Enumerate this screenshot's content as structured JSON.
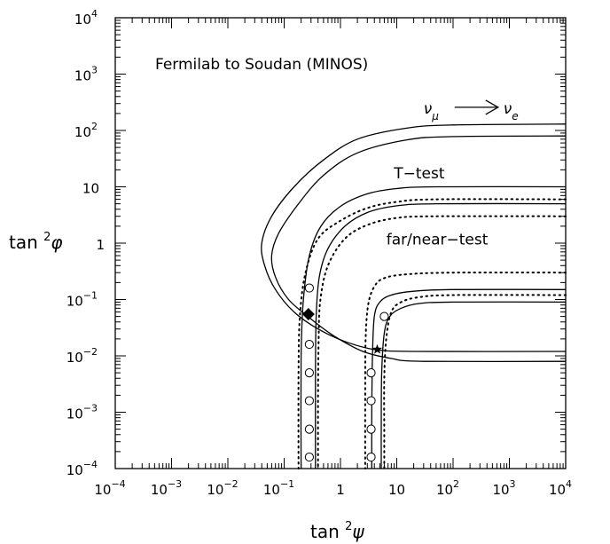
{
  "chart_data": {
    "type": "line",
    "title": "Fermilab to Soudan (MINOS)",
    "xlabel": "tan²ψ",
    "ylabel": "tan²φ",
    "xscale": "log",
    "yscale": "log",
    "xlim": [
      0.0001,
      10000
    ],
    "ylim": [
      0.0001,
      10000
    ],
    "x_tick_labels": [
      {
        "value": 0.0001,
        "base": "10",
        "exp": "−4"
      },
      {
        "value": 0.001,
        "base": "10",
        "exp": "−3"
      },
      {
        "value": 0.01,
        "base": "10",
        "exp": "−2"
      },
      {
        "value": 0.1,
        "base": "10",
        "exp": "−1"
      },
      {
        "value": 1,
        "base": "1",
        "exp": ""
      },
      {
        "value": 10,
        "base": "10",
        "exp": ""
      },
      {
        "value": 100,
        "base": "10",
        "exp": "2"
      },
      {
        "value": 1000,
        "base": "10",
        "exp": "3"
      },
      {
        "value": 10000,
        "base": "10",
        "exp": "4"
      }
    ],
    "y_tick_labels": [
      {
        "value": 10000,
        "base": "10",
        "exp": "4"
      },
      {
        "value": 1000,
        "base": "10",
        "exp": "3"
      },
      {
        "value": 100,
        "base": "10",
        "exp": "2"
      },
      {
        "value": 10,
        "base": "10",
        "exp": ""
      },
      {
        "value": 1,
        "base": "1",
        "exp": ""
      },
      {
        "value": 0.1,
        "base": "10",
        "exp": "−1"
      },
      {
        "value": 0.01,
        "base": "10",
        "exp": "−2"
      },
      {
        "value": 0.001,
        "base": "10",
        "exp": "−3"
      },
      {
        "value": 0.0001,
        "base": "10",
        "exp": "−4"
      }
    ],
    "annotations": {
      "numu_nue": {
        "nu": "ν",
        "mu": "μ",
        "e": "e",
        "x": 30,
        "y": 200
      },
      "t_test": {
        "text": "T−test",
        "x": 22,
        "y": 14
      },
      "far_near": {
        "text": "far/near−test",
        "x": 40,
        "y": 0.95
      }
    },
    "series": [
      {
        "style": "solid",
        "points": [
          [
            10000,
            130
          ],
          [
            100,
            125
          ],
          [
            15,
            110
          ],
          [
            2,
            70
          ],
          [
            0.5,
            30
          ],
          [
            0.15,
            10
          ],
          [
            0.06,
            3
          ],
          [
            0.04,
            1
          ],
          [
            0.045,
            0.4
          ],
          [
            0.07,
            0.15
          ],
          [
            0.15,
            0.06
          ],
          [
            0.4,
            0.03
          ],
          [
            1.2,
            0.018
          ],
          [
            4,
            0.013
          ],
          [
            20,
            0.012
          ],
          [
            10000,
            0.012
          ]
        ]
      },
      {
        "style": "solid",
        "points": [
          [
            10000,
            80
          ],
          [
            100,
            78
          ],
          [
            15,
            68
          ],
          [
            2,
            40
          ],
          [
            0.5,
            16
          ],
          [
            0.18,
            5
          ],
          [
            0.08,
            1.5
          ],
          [
            0.06,
            0.6
          ],
          [
            0.07,
            0.25
          ],
          [
            0.12,
            0.1
          ],
          [
            0.3,
            0.045
          ],
          [
            0.8,
            0.022
          ],
          [
            2.5,
            0.012
          ],
          [
            8,
            0.009
          ],
          [
            30,
            0.008
          ],
          [
            10000,
            0.008
          ]
        ]
      },
      {
        "style": "solid",
        "points": [
          [
            10000,
            10
          ],
          [
            50,
            10
          ],
          [
            10,
            9.3
          ],
          [
            3,
            7.5
          ],
          [
            1,
            4.5
          ],
          [
            0.45,
            2
          ],
          [
            0.28,
            0.6
          ],
          [
            0.22,
            0.1
          ],
          [
            0.2,
            0.01
          ],
          [
            0.2,
            0.0001
          ]
        ]
      },
      {
        "style": "solid",
        "points": [
          [
            10000,
            5
          ],
          [
            50,
            5
          ],
          [
            10,
            4.6
          ],
          [
            3,
            3.5
          ],
          [
            1.2,
            2
          ],
          [
            0.6,
            0.8
          ],
          [
            0.42,
            0.25
          ],
          [
            0.37,
            0.05
          ],
          [
            0.36,
            0.005
          ],
          [
            0.36,
            0.0001
          ]
        ]
      },
      {
        "style": "dotted",
        "points": [
          [
            10000,
            6
          ],
          [
            50,
            6
          ],
          [
            10,
            5.4
          ],
          [
            3,
            4.2
          ],
          [
            1,
            2.5
          ],
          [
            0.4,
            1.2
          ],
          [
            0.24,
            0.3
          ],
          [
            0.19,
            0.05
          ],
          [
            0.18,
            0.005
          ],
          [
            0.18,
            0.0001
          ]
        ]
      },
      {
        "style": "dotted",
        "points": [
          [
            10000,
            3
          ],
          [
            50,
            3
          ],
          [
            10,
            2.8
          ],
          [
            3,
            2.1
          ],
          [
            1.2,
            1.2
          ],
          [
            0.6,
            0.4
          ],
          [
            0.44,
            0.1
          ],
          [
            0.41,
            0.02
          ],
          [
            0.4,
            0.002
          ],
          [
            0.4,
            0.0001
          ]
        ]
      },
      {
        "style": "solid",
        "points": [
          [
            10000,
            0.15
          ],
          [
            100,
            0.15
          ],
          [
            20,
            0.14
          ],
          [
            8,
            0.12
          ],
          [
            5,
            0.09
          ],
          [
            4,
            0.05
          ],
          [
            3.7,
            0.01
          ],
          [
            3.6,
            0.001
          ],
          [
            3.6,
            0.0001
          ]
        ]
      },
      {
        "style": "solid",
        "points": [
          [
            10000,
            0.09
          ],
          [
            100,
            0.09
          ],
          [
            25,
            0.085
          ],
          [
            12,
            0.07
          ],
          [
            7.5,
            0.05
          ],
          [
            6,
            0.025
          ],
          [
            5.4,
            0.005
          ],
          [
            5.3,
            0.0005
          ],
          [
            5.3,
            0.0001
          ]
        ]
      },
      {
        "style": "dotted",
        "points": [
          [
            10000,
            0.3
          ],
          [
            100,
            0.3
          ],
          [
            15,
            0.28
          ],
          [
            6,
            0.24
          ],
          [
            4,
            0.17
          ],
          [
            3.1,
            0.08
          ],
          [
            2.8,
            0.02
          ],
          [
            2.75,
            0.002
          ],
          [
            2.75,
            0.0001
          ]
        ]
      },
      {
        "style": "dotted",
        "points": [
          [
            10000,
            0.12
          ],
          [
            100,
            0.12
          ],
          [
            25,
            0.11
          ],
          [
            12,
            0.09
          ],
          [
            8,
            0.06
          ],
          [
            6.5,
            0.02
          ],
          [
            6,
            0.004
          ],
          [
            6,
            0.0004
          ],
          [
            6,
            0.0001
          ]
        ]
      }
    ],
    "open_circles": [
      [
        0.28,
        0.16
      ],
      [
        0.28,
        0.016
      ],
      [
        0.28,
        0.005
      ],
      [
        0.28,
        0.0016
      ],
      [
        0.28,
        0.0005
      ],
      [
        0.28,
        0.00016
      ],
      [
        3.5,
        0.0016
      ],
      [
        3.5,
        0.005
      ],
      [
        3.5,
        0.0005
      ],
      [
        3.5,
        0.00016
      ],
      [
        6,
        0.05
      ]
    ],
    "filled_diamond": [
      0.27,
      0.055
    ],
    "star": [
      4.5,
      0.013
    ],
    "grid": false
  }
}
